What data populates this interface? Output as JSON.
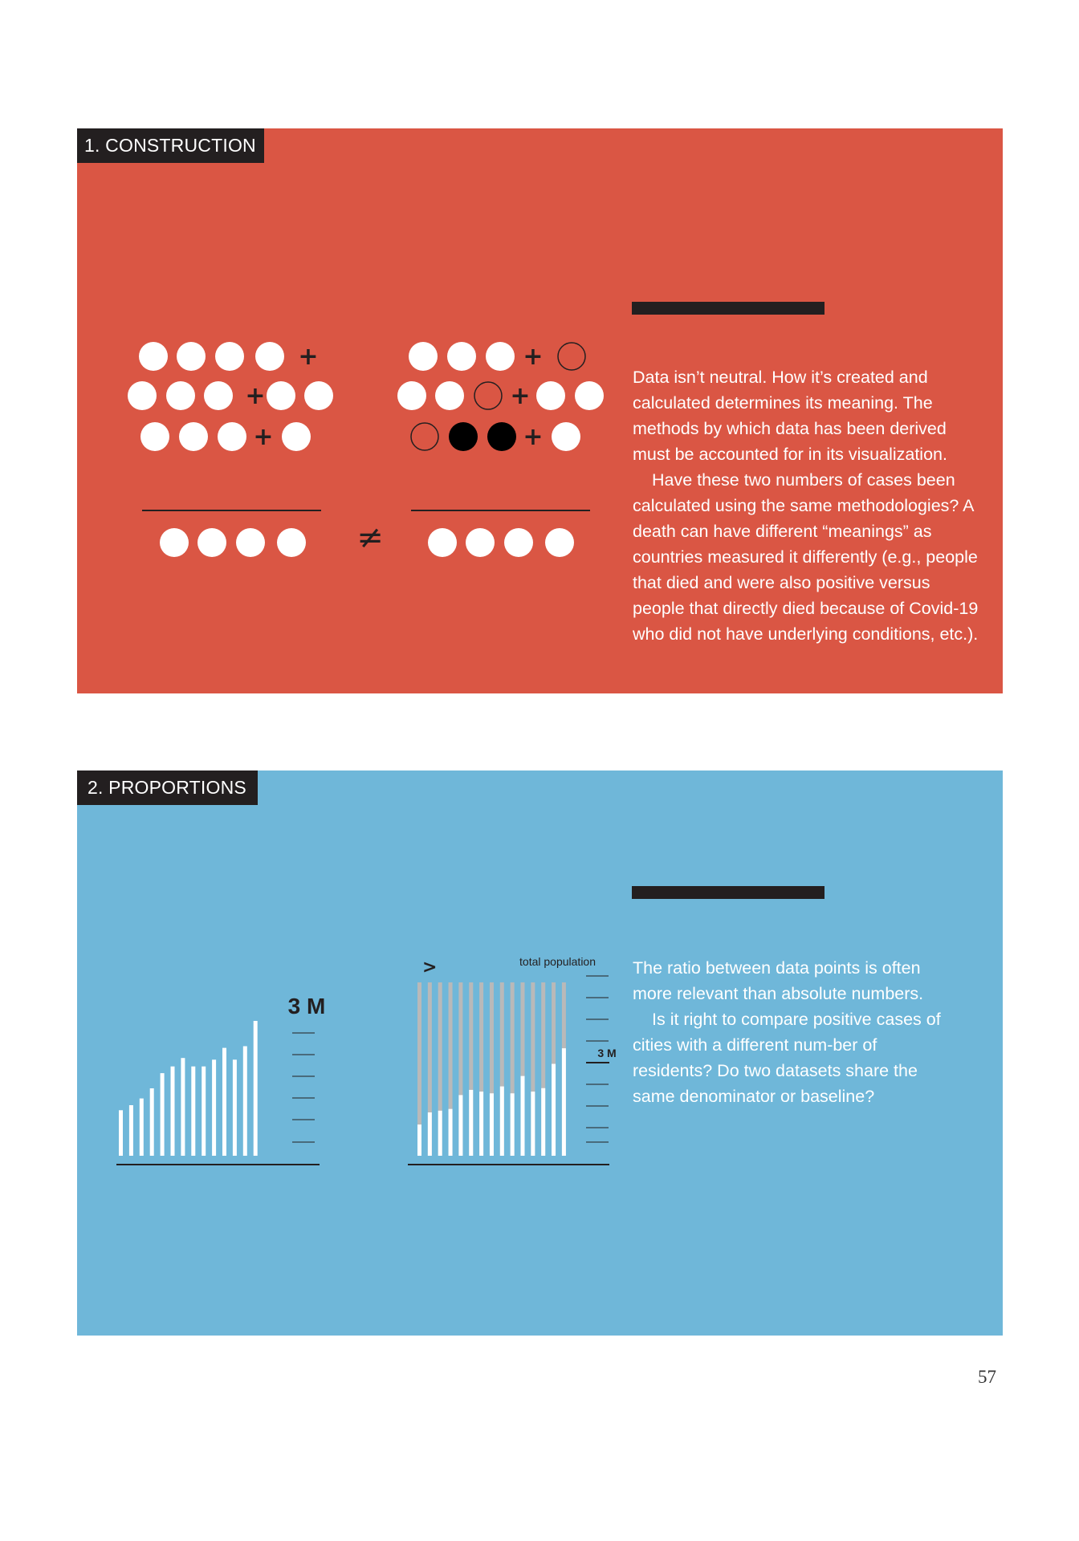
{
  "colors": {
    "construction_bg": "#da5644",
    "proportions_bg": "#6fb7d9",
    "label_bg": "#231f20",
    "text": "#ffffff",
    "gray_bar": "#b9b9b9"
  },
  "construction": {
    "label": "1. CONSTRUCTION",
    "paragraphs": [
      "Data isn’t neutral. How it’s created and calculated determines its meaning. The methods by which data has been derived must be accounted for in its visualization.",
      "Have these two numbers of cases been calculated using the same methodologies? A death can have different “meanings” as countries measured it differently (e.g., people that died and were also positive versus people that directly died because of Covid-19 who did not have underlying conditions, etc.)."
    ],
    "illustration": {
      "operator_plus": "+",
      "operator_not_equal": "≠",
      "left_rows": [
        [
          "filled",
          "filled",
          "filled",
          "filled",
          "+"
        ],
        [
          "filled",
          "filled",
          "filled",
          "+",
          "filled",
          "filled"
        ],
        [
          "filled",
          "filled",
          "filled",
          "+",
          "filled"
        ]
      ],
      "right_rows": [
        [
          "filled",
          "filled",
          "filled",
          "+",
          "outline"
        ],
        [
          "filled",
          "filled",
          "outline",
          "+",
          "filled",
          "filled"
        ],
        [
          "outline",
          "black",
          "black",
          "+",
          "filled"
        ]
      ],
      "result_count": 4
    }
  },
  "proportions": {
    "label": "2. PROPORTIONS",
    "paragraphs": [
      "The ratio between data points is often more relevant than absolute numbers.",
      "Is it right to compare positive cases of cities with a different num-ber of residents? Do two datasets share the same denominator or baseline?"
    ],
    "illustration": {
      "left_chart_label": "3 M",
      "right_chart_top_label": "total population",
      "right_chart_mark_label": "3 M",
      "comparison_symbol": ">",
      "left_bar_values": [
        0.27,
        0.3,
        0.34,
        0.4,
        0.49,
        0.53,
        0.58,
        0.53,
        0.53,
        0.57,
        0.64,
        0.57,
        0.65,
        0.8
      ],
      "right_bar_values": [
        0.18,
        0.25,
        0.26,
        0.27,
        0.35,
        0.38,
        0.37,
        0.36,
        0.4,
        0.36,
        0.46,
        0.37,
        0.39,
        0.53,
        0.62
      ],
      "right_total_value": 1.0
    }
  },
  "page_number": "57"
}
